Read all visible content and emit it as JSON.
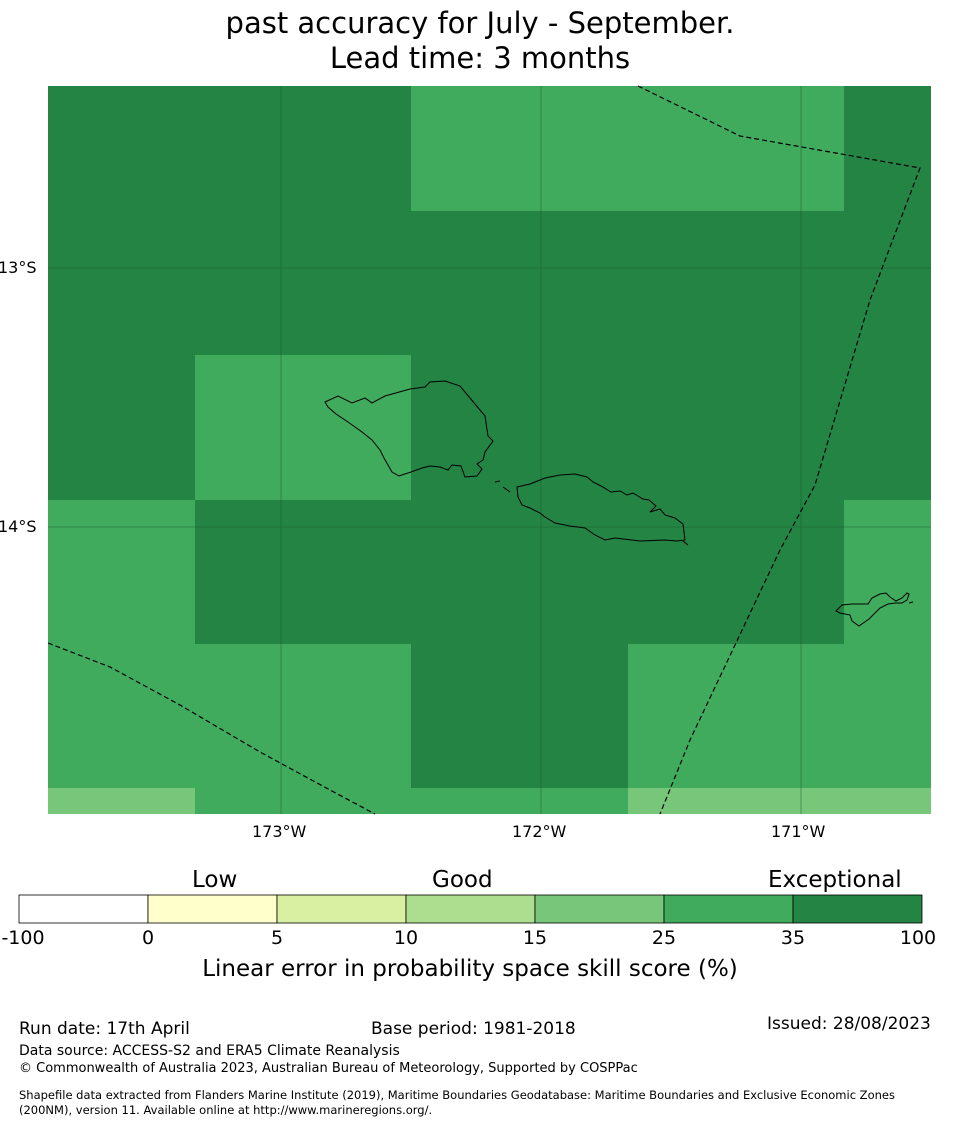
{
  "title": {
    "line1": "past accuracy for July - September.",
    "line2": "Lead time: 3 months"
  },
  "map": {
    "lat_labels": [
      "13°S",
      "14°S"
    ],
    "lon_labels": [
      "173°W",
      "172°W",
      "171°W"
    ],
    "colors": {
      "band_0_5": "#ffffcc",
      "band_5_10": "#d9f0a3",
      "band_10_15": "#addd8e",
      "band_15_25": "#78c679",
      "band_25_35": "#41ab5d",
      "band_35_100": "#238443"
    }
  },
  "legend": {
    "tiers": [
      "Low",
      "Good",
      "Exceptional"
    ],
    "ticks": [
      "-100",
      "0",
      "5",
      "10",
      "15",
      "25",
      "35",
      "100"
    ],
    "colors": [
      "#ffffff",
      "#ffffcc",
      "#d9f0a3",
      "#addd8e",
      "#78c679",
      "#41ab5d",
      "#238443"
    ],
    "label": "Linear error in probability space skill score (%)"
  },
  "footer": {
    "run_date": "Run date: 17th April",
    "base_period": "Base period: 1981-2018",
    "issued": "Issued: 28/08/2023",
    "data_source": "Data source: ACCESS-S2 and ERA5 Climate Reanalysis",
    "copyright": "© Commonwealth of Australia 2023, Australian Bureau of Meteorology, Supported by COSPPac",
    "shapefile_line1": "Shapefile data extracted from Flanders Marine Institute (2019), Maritime Boundaries Geodatabase: Maritime Boundaries and Exclusive Economic Zones",
    "shapefile_line2": "(200NM), version 11. Available online at http://www.marineregions.org/."
  }
}
